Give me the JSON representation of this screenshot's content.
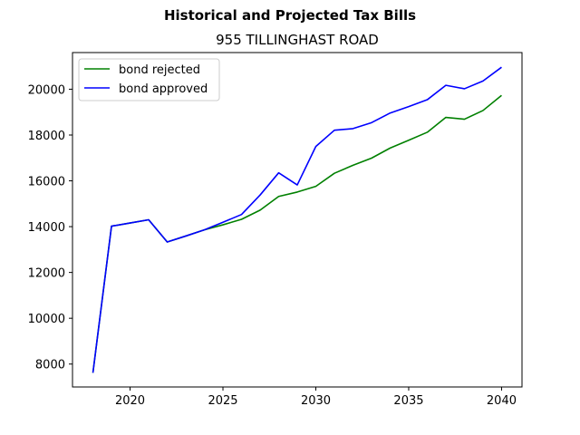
{
  "chart_data": {
    "type": "line",
    "suptitle": "Historical and Projected Tax Bills",
    "title": "955 TILLINGHAST ROAD",
    "xlabel": "",
    "ylabel": "",
    "xlim": [
      2016.9,
      2041.1
    ],
    "ylim": [
      7000,
      21600
    ],
    "xticks": [
      2020,
      2025,
      2030,
      2035,
      2040
    ],
    "yticks": [
      8000,
      10000,
      12000,
      14000,
      16000,
      18000,
      20000
    ],
    "grid": false,
    "legend_position": "upper-left",
    "x": [
      2018,
      2019,
      2020,
      2021,
      2022,
      2023,
      2024,
      2025,
      2026,
      2027,
      2028,
      2029,
      2030,
      2031,
      2032,
      2033,
      2034,
      2035,
      2036,
      2037,
      2038,
      2039,
      2040
    ],
    "series": [
      {
        "name": "bond rejected",
        "color": "#008000",
        "values": [
          7620,
          14020,
          14160,
          14300,
          13330,
          13590,
          13860,
          14080,
          14320,
          14720,
          15320,
          15510,
          15760,
          16330,
          16680,
          16990,
          17430,
          17770,
          18120,
          18770,
          18690,
          19070,
          19730
        ]
      },
      {
        "name": "bond approved",
        "color": "#0000ff",
        "values": [
          7620,
          14020,
          14160,
          14300,
          13330,
          13590,
          13860,
          14190,
          14530,
          15380,
          16350,
          15820,
          17500,
          18210,
          18280,
          18540,
          18960,
          19240,
          19540,
          20170,
          20020,
          20360,
          20960
        ]
      }
    ]
  }
}
